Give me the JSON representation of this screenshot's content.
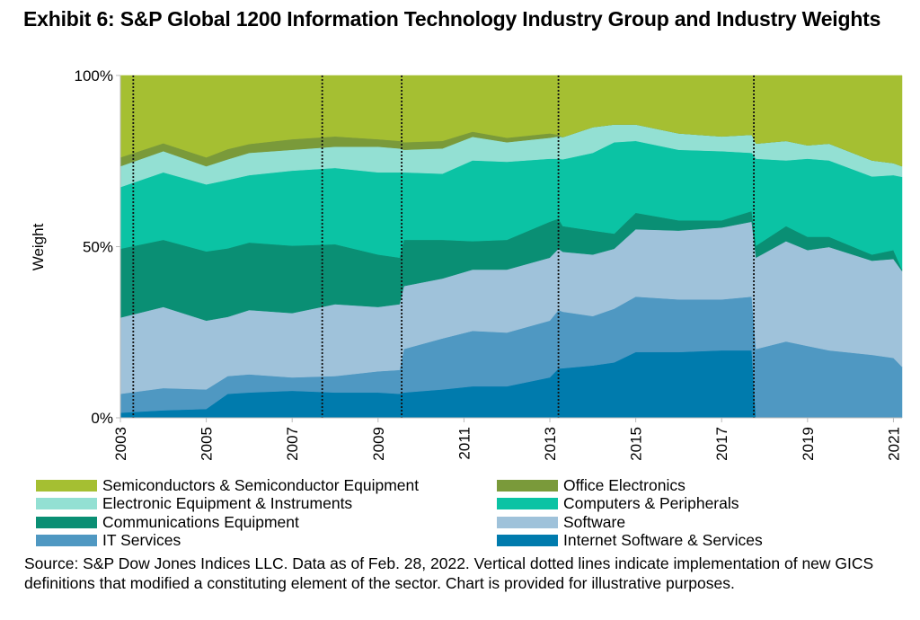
{
  "title": "Exhibit 6: S&P Global 1200 Information Technology Industry Group and Industry Weights",
  "source": "Source: S&P Dow Jones Indices LLC.  Data as of Feb. 28, 2022.  Vertical dotted lines indicate implementation of new GICS definitions that modified a constituting element of the sector.  Chart is provided for illustrative purposes.",
  "chart_data": {
    "type": "area",
    "stacked": true,
    "title": "Exhibit 6: S&P Global 1200 Information Technology Industry Group and Industry Weights",
    "xlabel": "",
    "ylabel": "Weight",
    "xlim": [
      2003,
      2021.2
    ],
    "ylim": [
      0,
      100
    ],
    "y_ticks": [
      "0%",
      "50%",
      "100%"
    ],
    "y_tick_values": [
      0,
      50,
      100
    ],
    "x_ticks": [
      "2003",
      "2005",
      "2007",
      "2009",
      "2011",
      "2013",
      "2015",
      "2017",
      "2019",
      "2021"
    ],
    "x_tick_values": [
      2003,
      2005,
      2007,
      2009,
      2011,
      2013,
      2015,
      2017,
      2019,
      2021
    ],
    "grid": false,
    "legend_position": "bottom",
    "vertical_dotted_lines": [
      2003.3,
      2007.7,
      2009.55,
      2013.2,
      2017.75
    ],
    "x": [
      2003.0,
      2004.0,
      2005.0,
      2005.5,
      2006.0,
      2007.0,
      2008.0,
      2009.0,
      2009.5,
      2009.6,
      2010.5,
      2011.2,
      2012.0,
      2013.0,
      2013.2,
      2013.3,
      2014.0,
      2014.5,
      2015.0,
      2016.0,
      2017.0,
      2017.7,
      2017.8,
      2018.5,
      2019.0,
      2019.5,
      2020.5,
      2021.0,
      2021.2
    ],
    "series": [
      {
        "name": "Internet Software & Services",
        "color": "#007bad",
        "values": [
          1.5,
          2.2,
          2.6,
          7.0,
          7.4,
          7.9,
          7.4,
          7.4,
          7.0,
          7.4,
          8.3,
          9.2,
          9.2,
          11.8,
          14.4,
          14.5,
          15.3,
          16.2,
          19.2,
          19.2,
          19.7,
          19.7,
          0,
          0,
          0,
          0,
          0,
          0,
          0
        ]
      },
      {
        "name": "IT Services",
        "color": "#4f98c2",
        "values": [
          5.5,
          6.5,
          5.7,
          5.2,
          5.3,
          3.9,
          4.8,
          6.2,
          7.0,
          12.7,
          14.9,
          16.2,
          15.7,
          16.6,
          17.1,
          16.5,
          14.4,
          15.7,
          16.2,
          15.4,
          14.9,
          15.7,
          20.1,
          22.3,
          21.0,
          19.7,
          18.4,
          17.5,
          14.9
        ]
      },
      {
        "name": "Software",
        "color": "#9fc2da",
        "values": [
          22.3,
          23.7,
          20.1,
          17.3,
          18.8,
          18.8,
          21.0,
          18.8,
          19.2,
          18.4,
          17.5,
          17.9,
          18.4,
          18.4,
          17.9,
          17.5,
          18.0,
          17.5,
          19.7,
          20.1,
          21.0,
          21.9,
          26.7,
          29.3,
          28.0,
          30.2,
          27.5,
          28.9,
          28.0
        ]
      },
      {
        "name": "Communications Equipment",
        "color": "#0a8f74",
        "values": [
          20.1,
          19.6,
          20.2,
          20.0,
          19.7,
          19.7,
          17.5,
          15.3,
          13.6,
          13.5,
          11.3,
          8.3,
          8.7,
          10.5,
          8.8,
          7.5,
          7.0,
          4.4,
          4.8,
          3.0,
          2.1,
          3.1,
          3.5,
          4.4,
          3.9,
          3.0,
          1.8,
          2.6,
          0.4
        ]
      },
      {
        "name": "Computers & Peripherals",
        "color": "#0bc3a4",
        "values": [
          18.0,
          19.7,
          19.6,
          20.0,
          19.7,
          21.9,
          22.3,
          24.0,
          24.9,
          19.7,
          19.3,
          23.6,
          22.8,
          18.4,
          17.5,
          19.5,
          22.7,
          26.7,
          21.0,
          20.6,
          20.2,
          17.0,
          25.4,
          19.2,
          22.8,
          22.3,
          22.8,
          21.9,
          27.1
        ]
      },
      {
        "name": "Electronic Equipment & Instruments",
        "color": "#93e0d3",
        "values": [
          6.1,
          6.2,
          5.3,
          6.0,
          6.5,
          6.1,
          6.2,
          7.5,
          7.0,
          6.6,
          7.4,
          6.9,
          5.7,
          6.1,
          6.5,
          6.5,
          7.5,
          5.2,
          4.8,
          4.8,
          4.3,
          5.3,
          4.4,
          5.7,
          3.9,
          4.9,
          4.7,
          3.5,
          3.1
        ]
      },
      {
        "name": "Office Electronics",
        "color": "#7a9a3a",
        "values": [
          2.6,
          2.3,
          2.6,
          3.0,
          2.6,
          3.1,
          3.0,
          2.2,
          2.2,
          2.2,
          2.2,
          1.5,
          1.3,
          1.3,
          0.5,
          0,
          0,
          0,
          0,
          0,
          0,
          0,
          0,
          0,
          0,
          0,
          0,
          0,
          0
        ]
      },
      {
        "name": "Semiconductors & Semiconductor Equipment",
        "color": "#a5bf32",
        "values": [
          23.9,
          19.8,
          23.9,
          21.5,
          20.0,
          18.6,
          17.8,
          18.6,
          19.1,
          19.5,
          19.1,
          16.4,
          18.2,
          16.9,
          17.3,
          18.0,
          15.1,
          14.3,
          14.3,
          16.9,
          17.8,
          17.3,
          19.9,
          19.1,
          20.4,
          19.9,
          24.8,
          25.6,
          26.5
        ]
      }
    ]
  },
  "legend": [
    {
      "label": "Semiconductors & Semiconductor Equipment",
      "color": "#a5bf32"
    },
    {
      "label": "Office Electronics",
      "color": "#7a9a3a"
    },
    {
      "label": "Electronic Equipment & Instruments",
      "color": "#93e0d3"
    },
    {
      "label": "Computers & Peripherals",
      "color": "#0bc3a4"
    },
    {
      "label": "Communications Equipment",
      "color": "#0a8f74"
    },
    {
      "label": "Software",
      "color": "#9fc2da"
    },
    {
      "label": "IT Services",
      "color": "#4f98c2"
    },
    {
      "label": "Internet Software & Services",
      "color": "#007bad"
    }
  ]
}
